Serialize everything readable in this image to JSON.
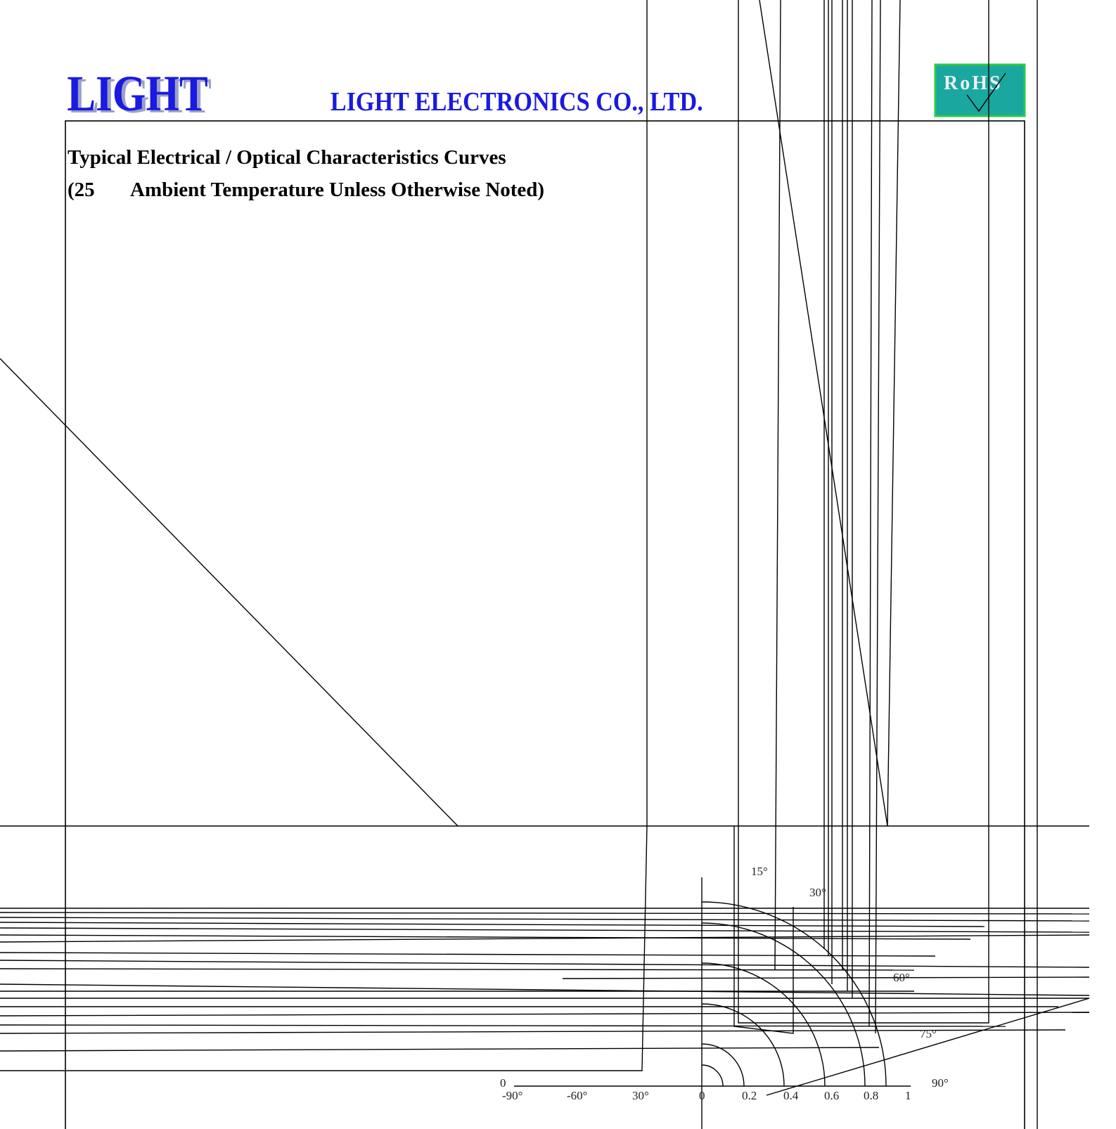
{
  "header": {
    "logo": "LIGHT",
    "company": "LIGHT ELECTRONICS CO., LTD.",
    "badge": "RoHS"
  },
  "section": {
    "title": "Typical Electrical / Optical Characteristics Curves",
    "subtitle_prefix": "(25",
    "subtitle": "Ambient Temperature Unless Otherwise Noted)"
  },
  "polar_labels": [
    "15°",
    "30°",
    "60°",
    "75°",
    "90°"
  ],
  "bottom_axis": {
    "zero": "0",
    "angles": [
      "-90°",
      "-60°",
      "30°"
    ],
    "scale": [
      "0",
      "0.2",
      "0.4",
      "0.6",
      "0.8",
      "1"
    ]
  }
}
